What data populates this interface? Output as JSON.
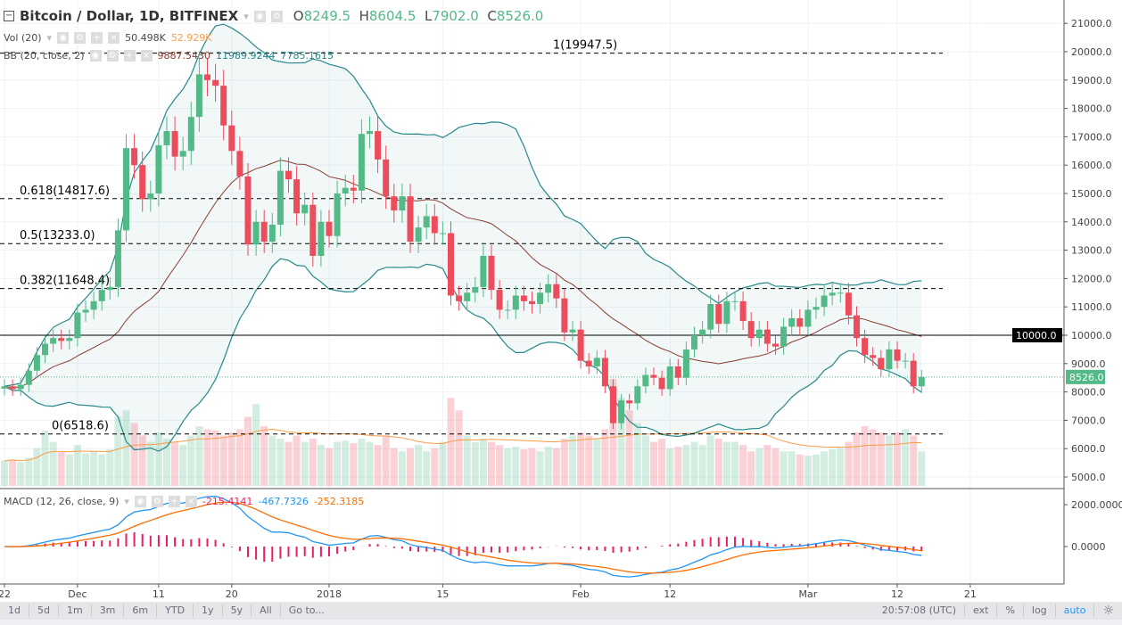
{
  "header": {
    "symbol": "Bitcoin / Dollar, 1D, BITFINEX",
    "o_label": "O",
    "o": "8249.5",
    "h_label": "H",
    "h": "8604.5",
    "l_label": "L",
    "l": "7902.0",
    "c_label": "C",
    "c": "8526.0"
  },
  "vol": {
    "label": "Vol (20)",
    "v1": "50.498K",
    "v2": "52.929K"
  },
  "bb": {
    "label": "BB (20, close, 2)",
    "basis": "9887.5430",
    "upper": "11989.9244",
    "lower": "7785.1615"
  },
  "macd": {
    "label": "MACD (12, 26, close, 9)",
    "hist": "-215.4141",
    "macd": "-467.7326",
    "signal": "-252.3185"
  },
  "colors": {
    "up": "#53b987",
    "down": "#eb4d5c",
    "bb": "#26888a",
    "basis": "#8b3a30",
    "macd": "#2196f3",
    "signal": "#ff6d00",
    "hist": "#e91e63"
  },
  "chart_data": {
    "type": "candlestick",
    "price_axis": [
      "21000.0",
      "20000.0",
      "19000.0",
      "18000.0",
      "17000.0",
      "16000.0",
      "15000.0",
      "14000.0",
      "13000.0",
      "12000.0",
      "11000.0",
      "10000.0",
      "9000.0",
      "8000.0",
      "7000.0",
      "6000.0",
      "5000.0"
    ],
    "macd_axis": [
      "2000.0000",
      "0.0000"
    ],
    "last_price": "8526.0",
    "hline": "10000.0",
    "fib": [
      {
        "label": "1(19947.5)",
        "v": 19947.5
      },
      {
        "label": "0.618(14817.6)",
        "v": 14817.6
      },
      {
        "label": "0.5(13233.0)",
        "v": 13233.0
      },
      {
        "label": "0.382(11648.4)",
        "v": 11648.4
      },
      {
        "label": "0(6518.6)",
        "v": 6518.6
      }
    ],
    "time_labels": [
      {
        "t": "22",
        "i": 0
      },
      {
        "t": "Dec",
        "i": 9
      },
      {
        "t": "11",
        "i": 19
      },
      {
        "t": "20",
        "i": 28
      },
      {
        "t": "2018",
        "i": 40
      },
      {
        "t": "15",
        "i": 54
      },
      {
        "t": "Feb",
        "i": 71
      },
      {
        "t": "12",
        "i": 82
      },
      {
        "t": "Mar",
        "i": 99
      },
      {
        "t": "12",
        "i": 110
      },
      {
        "t": "21",
        "i": 119
      }
    ],
    "closes": [
      8200,
      8100,
      8250,
      8750,
      9300,
      9700,
      9900,
      9800,
      9900,
      10800,
      10900,
      11200,
      11600,
      11700,
      13700,
      16600,
      16000,
      14800,
      15000,
      16700,
      17200,
      16300,
      16500,
      17700,
      19200,
      19000,
      18800,
      17400,
      16500,
      15600,
      13200,
      14000,
      13300,
      13900,
      15800,
      15500,
      14300,
      14600,
      12800,
      14000,
      13500,
      15000,
      15200,
      15100,
      17100,
      17200,
      16200,
      14900,
      14400,
      14900,
      13300,
      13800,
      14200,
      13600,
      13600,
      11400,
      11200,
      11500,
      11700,
      12800,
      11600,
      10900,
      10900,
      11400,
      11200,
      11100,
      11500,
      11800,
      11300,
      10100,
      10200,
      9100,
      8900,
      9200,
      8200,
      6900,
      7700,
      7600,
      8200,
      8600,
      8500,
      8100,
      8900,
      8500,
      9500,
      10000,
      10200,
      11100,
      10400,
      11200,
      11200,
      10500,
      9900,
      10200,
      9700,
      9600,
      10300,
      10600,
      10300,
      10900,
      11000,
      11400,
      11500,
      11500,
      10700,
      9900,
      9300,
      9200,
      8800,
      9500,
      9100,
      9100,
      8200,
      8526
    ],
    "volumes": [
      40,
      42,
      38,
      45,
      60,
      88,
      70,
      55,
      50,
      65,
      52,
      55,
      50,
      58,
      110,
      120,
      100,
      80,
      70,
      85,
      75,
      70,
      65,
      80,
      95,
      90,
      88,
      80,
      85,
      90,
      110,
      130,
      95,
      80,
      75,
      70,
      80,
      70,
      75,
      65,
      60,
      70,
      72,
      68,
      75,
      70,
      65,
      80,
      60,
      55,
      60,
      65,
      55,
      60,
      70,
      140,
      120,
      80,
      70,
      75,
      70,
      65,
      60,
      62,
      58,
      60,
      55,
      62,
      60,
      75,
      80,
      85,
      80,
      75,
      90,
      170,
      140,
      120,
      100,
      80,
      70,
      75,
      60,
      62,
      65,
      70,
      65,
      80,
      75,
      70,
      70,
      65,
      55,
      60,
      65,
      60,
      55,
      55,
      50,
      48,
      50,
      55,
      58,
      60,
      70,
      85,
      95,
      90,
      85,
      80,
      85,
      90,
      80,
      55
    ]
  },
  "time": {
    "clock": "20:57:08 (UTC)"
  },
  "toolbar": {
    "ranges": [
      "1d",
      "5d",
      "1m",
      "3m",
      "6m",
      "YTD",
      "1y",
      "5y",
      "All",
      "Go to..."
    ],
    "ext": "ext",
    "pct": "%",
    "log": "log",
    "auto": "auto"
  }
}
